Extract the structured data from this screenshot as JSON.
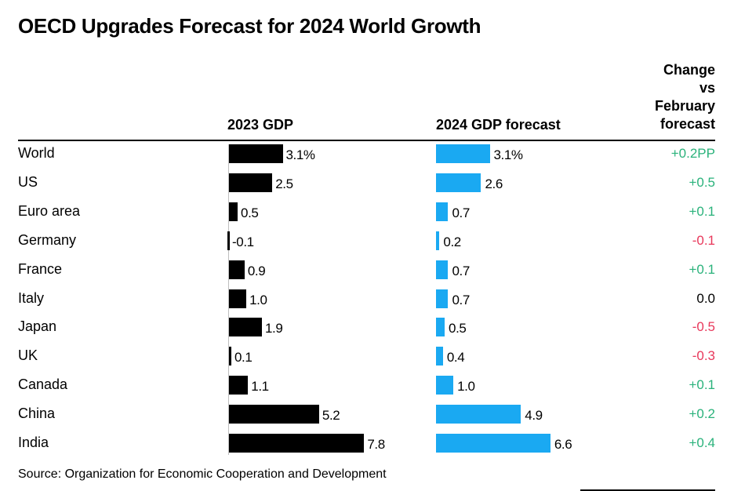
{
  "title": "OECD Upgrades Forecast for 2024 World Growth",
  "headers": {
    "gdp_2023": "2023 GDP",
    "gdp_2024": "2024 GDP forecast",
    "change": [
      "Change",
      "vs",
      "February",
      "forecast"
    ]
  },
  "source": "Source: Organization for Economic Cooperation and Development",
  "colors": {
    "bar_2023": "#000000",
    "bar_2024": "#1aa9f2",
    "positive": "#2ab27b",
    "negative": "#e8385b",
    "neutral": "#000000"
  },
  "chart_data": {
    "type": "bar",
    "orientation": "horizontal",
    "categories": [
      "World",
      "US",
      "Euro area",
      "Germany",
      "France",
      "Italy",
      "Japan",
      "UK",
      "Canada",
      "China",
      "India"
    ],
    "series": [
      {
        "name": "2023 GDP",
        "values": [
          3.1,
          2.5,
          0.5,
          -0.1,
          0.9,
          1.0,
          1.9,
          0.1,
          1.1,
          5.2,
          7.8
        ],
        "labels": [
          "3.1%",
          "2.5",
          "0.5",
          "-0.1",
          "0.9",
          "1.0",
          "1.9",
          "0.1",
          "1.1",
          "5.2",
          "7.8"
        ]
      },
      {
        "name": "2024 GDP forecast",
        "values": [
          3.1,
          2.6,
          0.7,
          0.2,
          0.7,
          0.7,
          0.5,
          0.4,
          1.0,
          4.9,
          6.6
        ],
        "labels": [
          "3.1%",
          "2.6",
          "0.7",
          "0.2",
          "0.7",
          "0.7",
          "0.5",
          "0.4",
          "1.0",
          "4.9",
          "6.6"
        ]
      }
    ],
    "change_vs_february": {
      "values": [
        0.2,
        0.5,
        0.1,
        -0.1,
        0.1,
        0.0,
        -0.5,
        -0.3,
        0.1,
        0.2,
        0.4
      ],
      "labels": [
        "+0.2PP",
        "+0.5",
        "+0.1",
        "-0.1",
        "+0.1",
        "0.0",
        "-0.5",
        "-0.3",
        "+0.1",
        "+0.2",
        "+0.4"
      ]
    }
  }
}
